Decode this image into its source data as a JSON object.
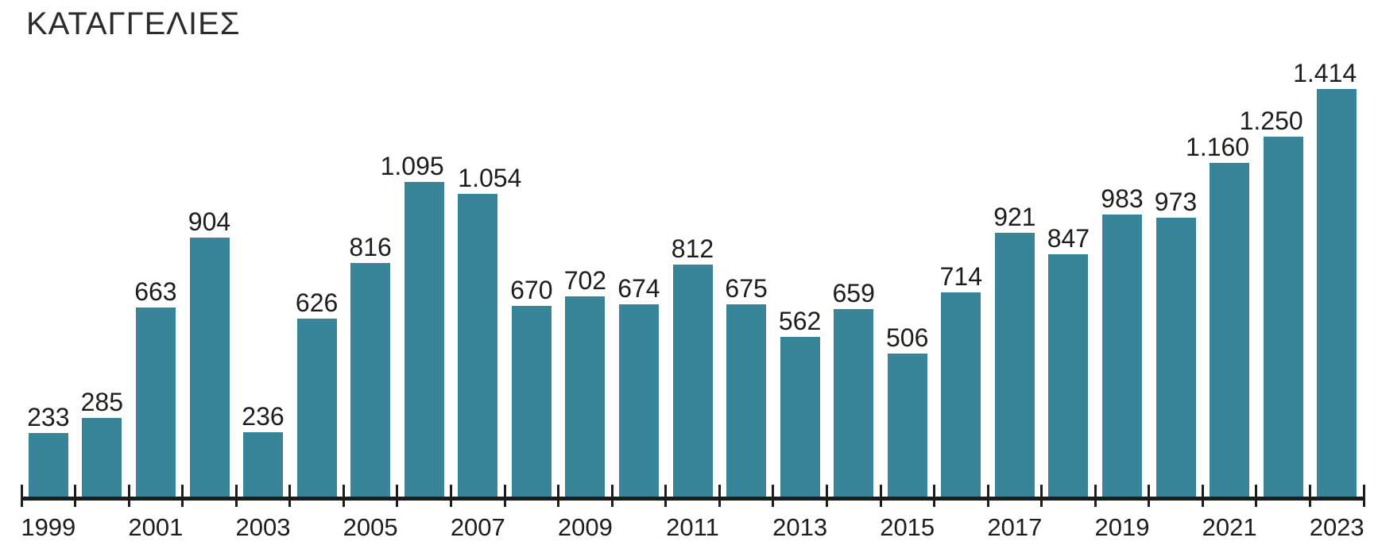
{
  "title": "ΚΑΤΑΓΓΕΛΙΕΣ",
  "chart_data": {
    "type": "bar",
    "title": "ΚΑΤΑΓΓΕΛΙΕΣ",
    "categories": [
      1999,
      2000,
      2001,
      2002,
      2003,
      2004,
      2005,
      2006,
      2007,
      2008,
      2009,
      2010,
      2011,
      2012,
      2013,
      2014,
      2015,
      2016,
      2017,
      2018,
      2019,
      2020,
      2021,
      2022,
      2023
    ],
    "values": [
      233,
      285,
      663,
      904,
      236,
      626,
      816,
      1095,
      1054,
      670,
      702,
      674,
      812,
      675,
      562,
      659,
      506,
      714,
      921,
      847,
      983,
      973,
      1160,
      1250,
      1414
    ],
    "value_labels": [
      "233",
      "285",
      "663",
      "904",
      "236",
      "626",
      "816",
      "1.095",
      "1.054",
      "670",
      "702",
      "674",
      "812",
      "675",
      "562",
      "659",
      "506",
      "714",
      "921",
      "847",
      "983",
      "973",
      "1.160",
      "1.250",
      "1.414"
    ],
    "x_tick_labels": [
      "1999",
      "2001",
      "2003",
      "2005",
      "2007",
      "2009",
      "2011",
      "2013",
      "2015",
      "2017",
      "2019",
      "2021",
      "2023"
    ],
    "xlabel": "",
    "ylabel": "",
    "ylim": [
      0,
      1500
    ],
    "grid": false,
    "legend": null,
    "y_axis_shown": false,
    "bar_color": "#388498",
    "text_color": "#1d1d1b",
    "axis_color": "#1d1d1b",
    "value_label_alignment_overrides": {
      "7": "right",
      "8": "left",
      "22": "right",
      "23": "right",
      "24": "right"
    }
  }
}
